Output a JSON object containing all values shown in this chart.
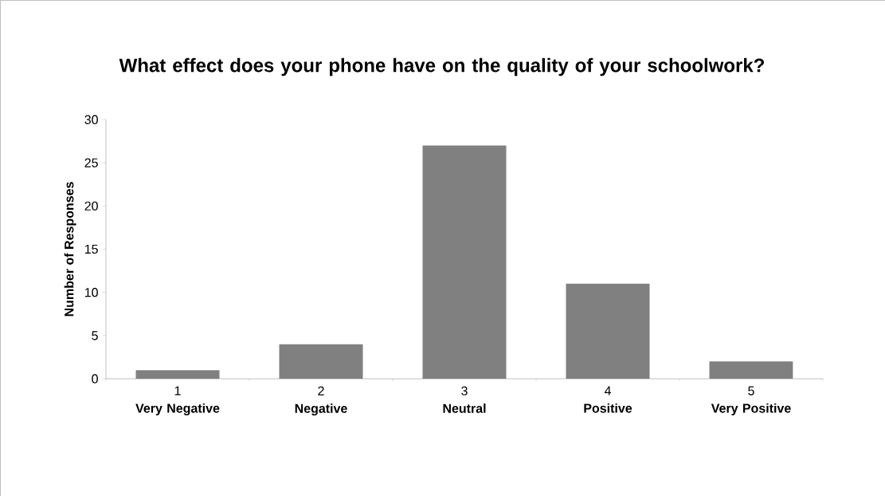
{
  "chart_data": {
    "type": "bar",
    "title": "What effect does your phone have on the quality of your schoolwork?",
    "ylabel": "Number of Responses",
    "categories": [
      "1 **Very Negative**",
      "2 **Negative**",
      "3 **Neutral**",
      "4 **Positive**",
      "5 **Very Positive**"
    ],
    "values": [
      1,
      4,
      27,
      11,
      2
    ],
    "color": "#808080",
    "ylim": [
      0,
      30
    ],
    "yticks": [
      0,
      5,
      10,
      15,
      20,
      25,
      30
    ],
    "grid": false
  }
}
